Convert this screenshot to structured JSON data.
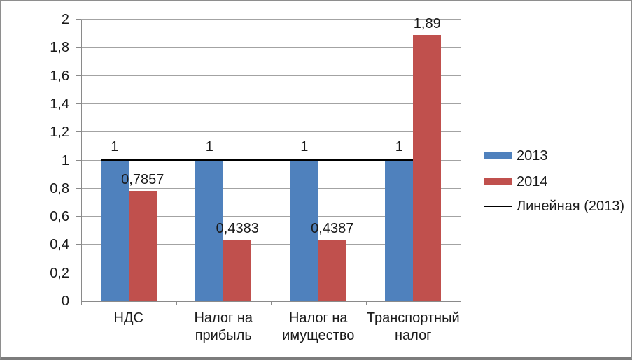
{
  "chart_data": {
    "type": "bar",
    "title": "",
    "xlabel": "",
    "ylabel": "",
    "categories": [
      "НДС",
      "Налог на прибыль",
      "Налог на имущество",
      "Транспортный налог"
    ],
    "categories_display": [
      "НДС",
      "Налог на\nприбыль",
      "Налог на\nимущество",
      "Транспортный\nналог"
    ],
    "series": [
      {
        "name": "2013",
        "color": "#4F81BD",
        "values": [
          1,
          1,
          1,
          1
        ],
        "labels": [
          "1",
          "1",
          "1",
          "1"
        ]
      },
      {
        "name": "2014",
        "color": "#C0504D",
        "values": [
          0.7857,
          0.4383,
          0.4387,
          1.89
        ],
        "labels": [
          "0,7857",
          "0,4383",
          "0,4387",
          "1,89"
        ]
      }
    ],
    "trendline": {
      "name": "Линейная (2013)",
      "value": 1,
      "color": "#000000"
    },
    "yticks": {
      "values": [
        0,
        0.2,
        0.4,
        0.6,
        0.8,
        1,
        1.2,
        1.4,
        1.6,
        1.8,
        2
      ],
      "labels": [
        "0",
        "0,2",
        "0,4",
        "0,6",
        "0,8",
        "1",
        "1,2",
        "1,4",
        "1,6",
        "1,8",
        "2"
      ]
    },
    "ylim": [
      0,
      2
    ],
    "grid": true,
    "legend_position": "right"
  },
  "legend": {
    "items": [
      {
        "label": "2013",
        "swatch": "rect",
        "color": "#4F81BD"
      },
      {
        "label": "2014",
        "swatch": "rect",
        "color": "#C0504D"
      },
      {
        "label": "Линейная (2013)",
        "swatch": "line",
        "color": "#000000"
      }
    ]
  },
  "colors": {
    "series_2013": "#4F81BD",
    "series_2014": "#C0504D",
    "gridline": "#A3A3A3",
    "axis": "#8A8A8A",
    "trendline": "#000000",
    "text": "#1A1A1A",
    "frame_border": "#8E8E8E",
    "background": "#FFFFFF"
  }
}
